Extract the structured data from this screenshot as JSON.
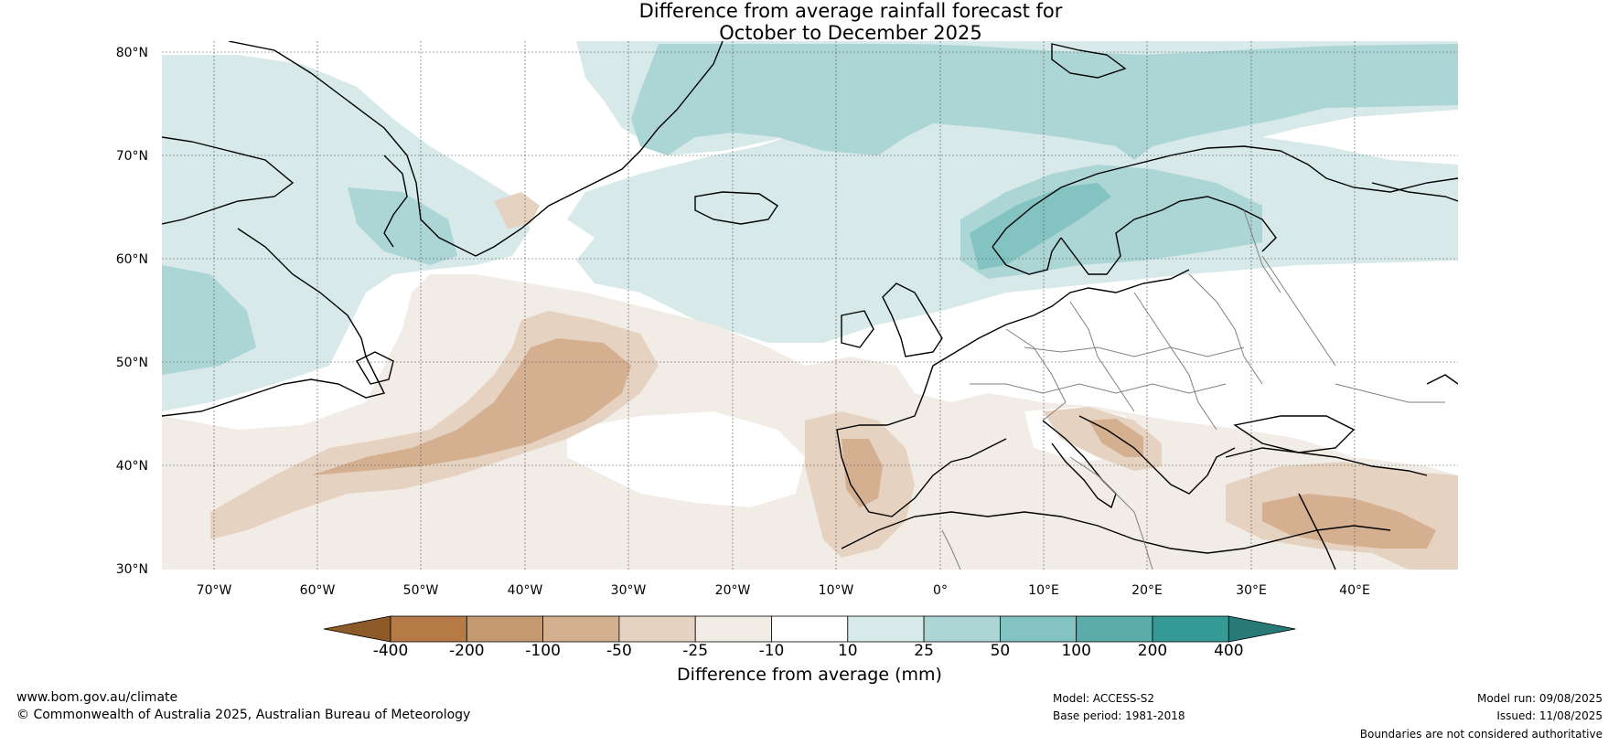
{
  "title": {
    "line1": "Difference from average rainfall forecast for",
    "line2": "October to December 2025"
  },
  "map": {
    "lat_labels": [
      "80°N",
      "70°N",
      "60°N",
      "50°N",
      "40°N",
      "30°N"
    ],
    "lon_labels": [
      "70°W",
      "60°W",
      "50°W",
      "40°W",
      "30°W",
      "20°W",
      "10°W",
      "0°",
      "10°E",
      "20°E",
      "30°E",
      "40°E"
    ],
    "extent": {
      "lon": [
        -75,
        50
      ],
      "lat": [
        30,
        81
      ]
    },
    "ocean_color": "#ffffff",
    "land_outline_color": "#000000",
    "border_color": "#808080"
  },
  "colorbar": {
    "ticks": [
      "-400",
      "-200",
      "-100",
      "-50",
      "-25",
      "-10",
      "10",
      "25",
      "50",
      "100",
      "200",
      "400"
    ],
    "colors": [
      "#8e5a28",
      "#b57a45",
      "#c49a70",
      "#d4b090",
      "#e5d2c0",
      "#f2ece6",
      "#ffffff",
      "#d7e9e8",
      "#acd6d5",
      "#83c3c1",
      "#5aadab",
      "#359996",
      "#287a78"
    ],
    "label": "Difference from average (mm)"
  },
  "footer": {
    "site": "www.bom.gov.au/climate",
    "copyright": "© Commonwealth of Australia 2025, Australian Bureau of Meteorology",
    "model": "Model: ACCESS-S2",
    "base_period": "Base period: 1981-2018",
    "model_run": "Model run: 09/08/2025",
    "issued": "Issued: 11/08/2025",
    "disclaimer": "Boundaries are not considered authoritative"
  }
}
